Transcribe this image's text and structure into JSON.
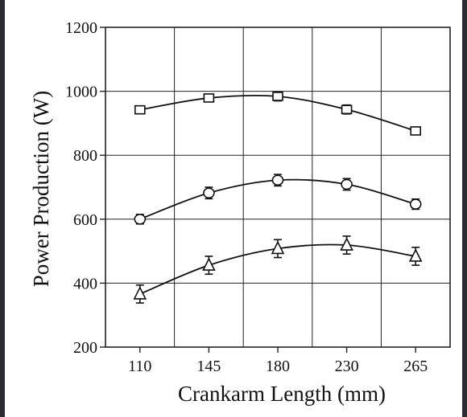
{
  "chart_data": {
    "type": "line",
    "title": "",
    "xlabel": "Crankarm Length (mm)",
    "ylabel": "Power Production (W)",
    "categories": [
      "110",
      "145",
      "180",
      "230",
      "265"
    ],
    "ylim": [
      200,
      1200
    ],
    "yticks": [
      200,
      400,
      600,
      800,
      1000,
      1200
    ],
    "grid": true,
    "legend": "none",
    "series": [
      {
        "marker": "square",
        "values": [
          942,
          979,
          984,
          943,
          876
        ],
        "error": [
          12,
          12,
          14,
          14,
          12
        ]
      },
      {
        "marker": "circle",
        "values": [
          600,
          682,
          722,
          709,
          647
        ],
        "error": [
          15,
          18,
          18,
          18,
          16
        ]
      },
      {
        "marker": "triangle",
        "values": [
          366,
          456,
          508,
          519,
          484
        ],
        "error": [
          28,
          28,
          28,
          28,
          28
        ]
      }
    ],
    "colors": {
      "line": "#111111",
      "grid": "#222222",
      "background": "#ffffff"
    }
  }
}
